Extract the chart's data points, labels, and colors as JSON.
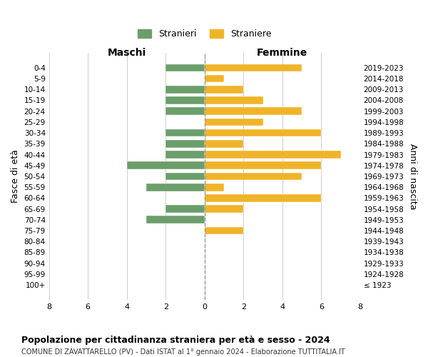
{
  "age_groups": [
    "100+",
    "95-99",
    "90-94",
    "85-89",
    "80-84",
    "75-79",
    "70-74",
    "65-69",
    "60-64",
    "55-59",
    "50-54",
    "45-49",
    "40-44",
    "35-39",
    "30-34",
    "25-29",
    "20-24",
    "15-19",
    "10-14",
    "5-9",
    "0-4"
  ],
  "birth_years": [
    "≤ 1923",
    "1924-1928",
    "1929-1933",
    "1934-1938",
    "1939-1943",
    "1944-1948",
    "1949-1953",
    "1954-1958",
    "1959-1963",
    "1964-1968",
    "1969-1973",
    "1974-1978",
    "1979-1983",
    "1984-1988",
    "1989-1993",
    "1994-1998",
    "1999-2003",
    "2004-2008",
    "2009-2013",
    "2014-2018",
    "2019-2023"
  ],
  "maschi": [
    0,
    0,
    0,
    0,
    0,
    0,
    3,
    2,
    0,
    3,
    2,
    4,
    2,
    2,
    2,
    0,
    2,
    2,
    2,
    0,
    2
  ],
  "femmine": [
    0,
    0,
    0,
    0,
    0,
    2,
    0,
    2,
    6,
    1,
    5,
    6,
    7,
    2,
    6,
    3,
    5,
    3,
    2,
    1,
    5
  ],
  "color_maschi": "#6b9e6b",
  "color_femmine": "#f0b429",
  "background_color": "#ffffff",
  "grid_color": "#cccccc",
  "title": "Popolazione per cittadinanza straniera per età e sesso - 2024",
  "subtitle": "COMUNE DI ZAVATTARELLO (PV) - Dati ISTAT al 1° gennaio 2024 - Elaborazione TUTTITALIA.IT",
  "xlabel_left": "Maschi",
  "xlabel_right": "Femmine",
  "ylabel_left": "Fasce di età",
  "ylabel_right": "Anni di nascita",
  "legend_stranieri": "Stranieri",
  "legend_straniere": "Straniere",
  "xlim": 8,
  "tick_positions": [
    0,
    2,
    4,
    6,
    8
  ]
}
